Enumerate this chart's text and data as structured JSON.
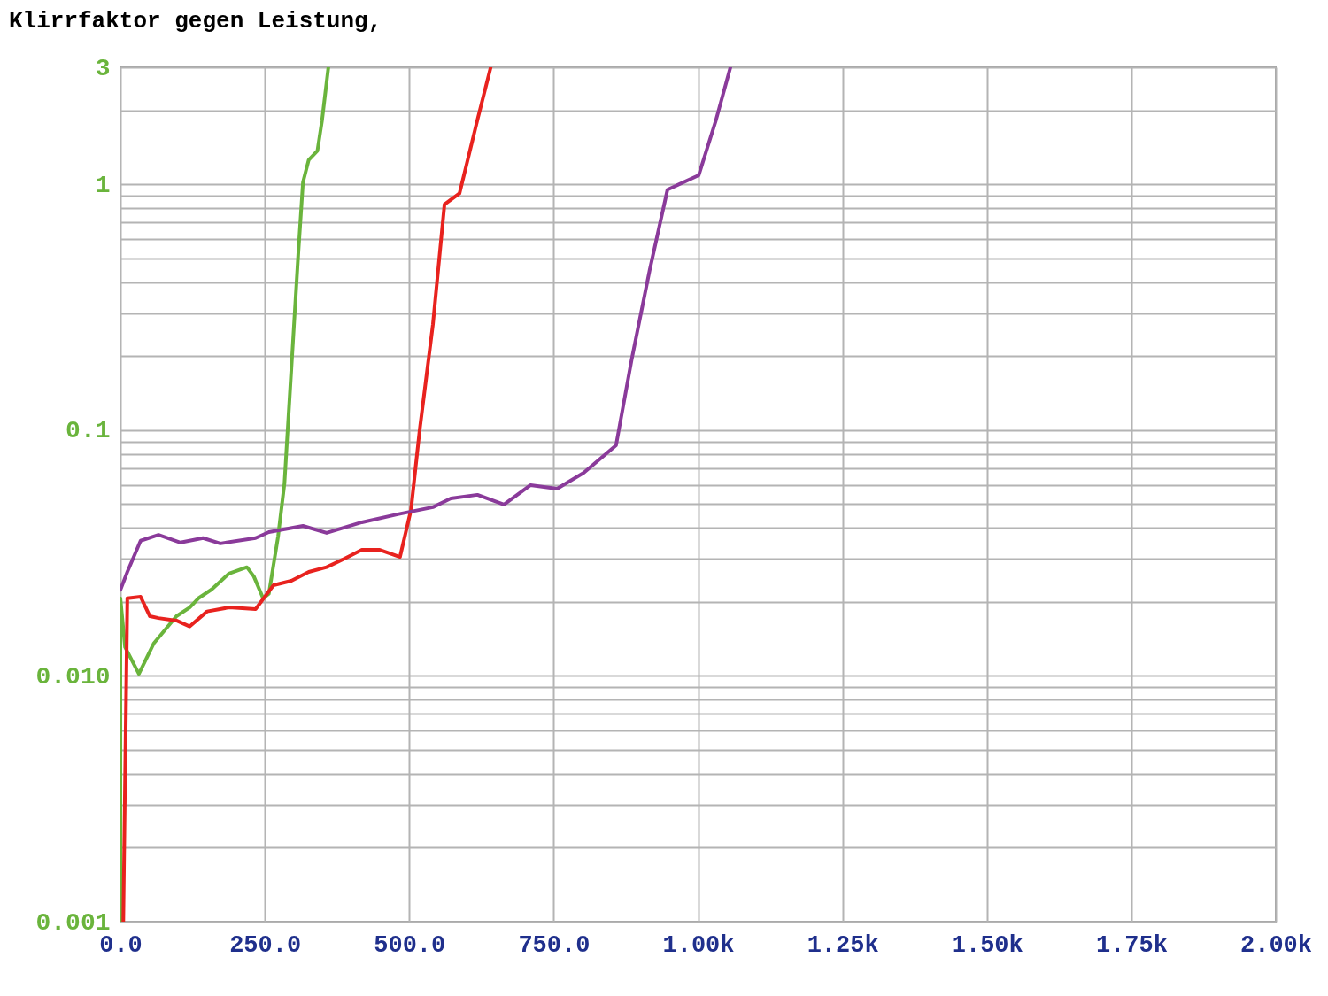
{
  "chart_data": {
    "type": "line",
    "title": "Klirrfaktor gegen Leistung,",
    "log": "y",
    "grid": true,
    "legend": false,
    "marker": "none",
    "line_style": "solid",
    "xlim": [
      0,
      2000
    ],
    "xticks": [
      {
        "value": 0,
        "label": "0.0"
      },
      {
        "value": 250,
        "label": "250.0"
      },
      {
        "value": 500,
        "label": "500.0"
      },
      {
        "value": 750,
        "label": "750.0"
      },
      {
        "value": 1000,
        "label": "1.00k"
      },
      {
        "value": 1250,
        "label": "1.25k"
      },
      {
        "value": 1500,
        "label": "1.50k"
      },
      {
        "value": 1750,
        "label": "1.75k"
      },
      {
        "value": 2000,
        "label": "2.00k"
      }
    ],
    "ylim": [
      0.001,
      3
    ],
    "yticks": [
      0.001,
      {
        "value": 0.002,
        "label": null
      },
      {
        "value": 0.003,
        "label": null
      },
      {
        "value": 0.004,
        "label": null
      },
      {
        "value": 0.005,
        "label": null
      },
      {
        "value": 0.006,
        "label": null
      },
      {
        "value": 0.007,
        "label": null
      },
      {
        "value": 0.008,
        "label": null
      },
      {
        "value": 0.009,
        "label": null
      },
      {
        "value": 0.01,
        "label": "0.010"
      },
      {
        "value": 0.02,
        "label": null
      },
      {
        "value": 0.03,
        "label": null
      },
      {
        "value": 0.04,
        "label": null
      },
      {
        "value": 0.05,
        "label": null
      },
      {
        "value": 0.06,
        "label": null
      },
      {
        "value": 0.07,
        "label": null
      },
      {
        "value": 0.08,
        "label": null
      },
      {
        "value": 0.09,
        "label": null
      },
      0.1,
      {
        "value": 0.2,
        "label": null
      },
      {
        "value": 0.3,
        "label": null
      },
      {
        "value": 0.4,
        "label": null
      },
      {
        "value": 0.5,
        "label": null
      },
      {
        "value": 0.6,
        "label": null
      },
      {
        "value": 0.7,
        "label": null
      },
      {
        "value": 0.8,
        "label": null
      },
      {
        "value": 0.9,
        "label": null
      },
      1,
      {
        "value": 2,
        "label": null
      },
      3
    ],
    "series": [
      {
        "color": "#6ab43c",
        "x": [
          0,
          0,
          8,
          32,
          58,
          97,
          120,
          135,
          158,
          188,
          219,
          231,
          247,
          257,
          273,
          284,
          296,
          308,
          316,
          326,
          341,
          349,
          360
        ],
        "values": [
          0.001,
          0.0207,
          0.0131,
          0.0102,
          0.0136,
          0.0175,
          0.019,
          0.0207,
          0.0225,
          0.0261,
          0.0277,
          0.0254,
          0.0207,
          0.0216,
          0.037,
          0.0608,
          0.179,
          0.526,
          1.02,
          1.26,
          1.37,
          1.82,
          3
        ]
      },
      {
        "color": "#e8221e",
        "x": [
          5,
          12,
          35,
          51,
          66,
          97,
          120,
          150,
          188,
          234,
          265,
          296,
          326,
          357,
          388,
          418,
          449,
          484,
          503,
          518,
          541,
          561,
          587,
          618,
          641
        ],
        "values": [
          0.001,
          0.0207,
          0.021,
          0.0175,
          0.0172,
          0.0168,
          0.0159,
          0.0183,
          0.019,
          0.0187,
          0.0234,
          0.0244,
          0.0265,
          0.0277,
          0.03,
          0.0326,
          0.0326,
          0.0305,
          0.0474,
          0.1,
          0.27,
          0.83,
          0.92,
          1.83,
          3
        ]
      },
      {
        "color": "#8a3a9a",
        "x": [
          0,
          12,
          35,
          66,
          104,
          143,
          173,
          234,
          257,
          316,
          357,
          418,
          480,
          541,
          572,
          618,
          664,
          710,
          756,
          802,
          858,
          885,
          916,
          947,
          1001,
          1031,
          1056
        ],
        "values": [
          0.0224,
          0.0265,
          0.0355,
          0.0375,
          0.0349,
          0.0364,
          0.0346,
          0.0364,
          0.0385,
          0.0408,
          0.0382,
          0.0422,
          0.0455,
          0.0486,
          0.0528,
          0.0546,
          0.0498,
          0.0598,
          0.0578,
          0.0671,
          0.0868,
          0.194,
          0.446,
          0.953,
          1.09,
          1.83,
          3
        ]
      }
    ]
  }
}
